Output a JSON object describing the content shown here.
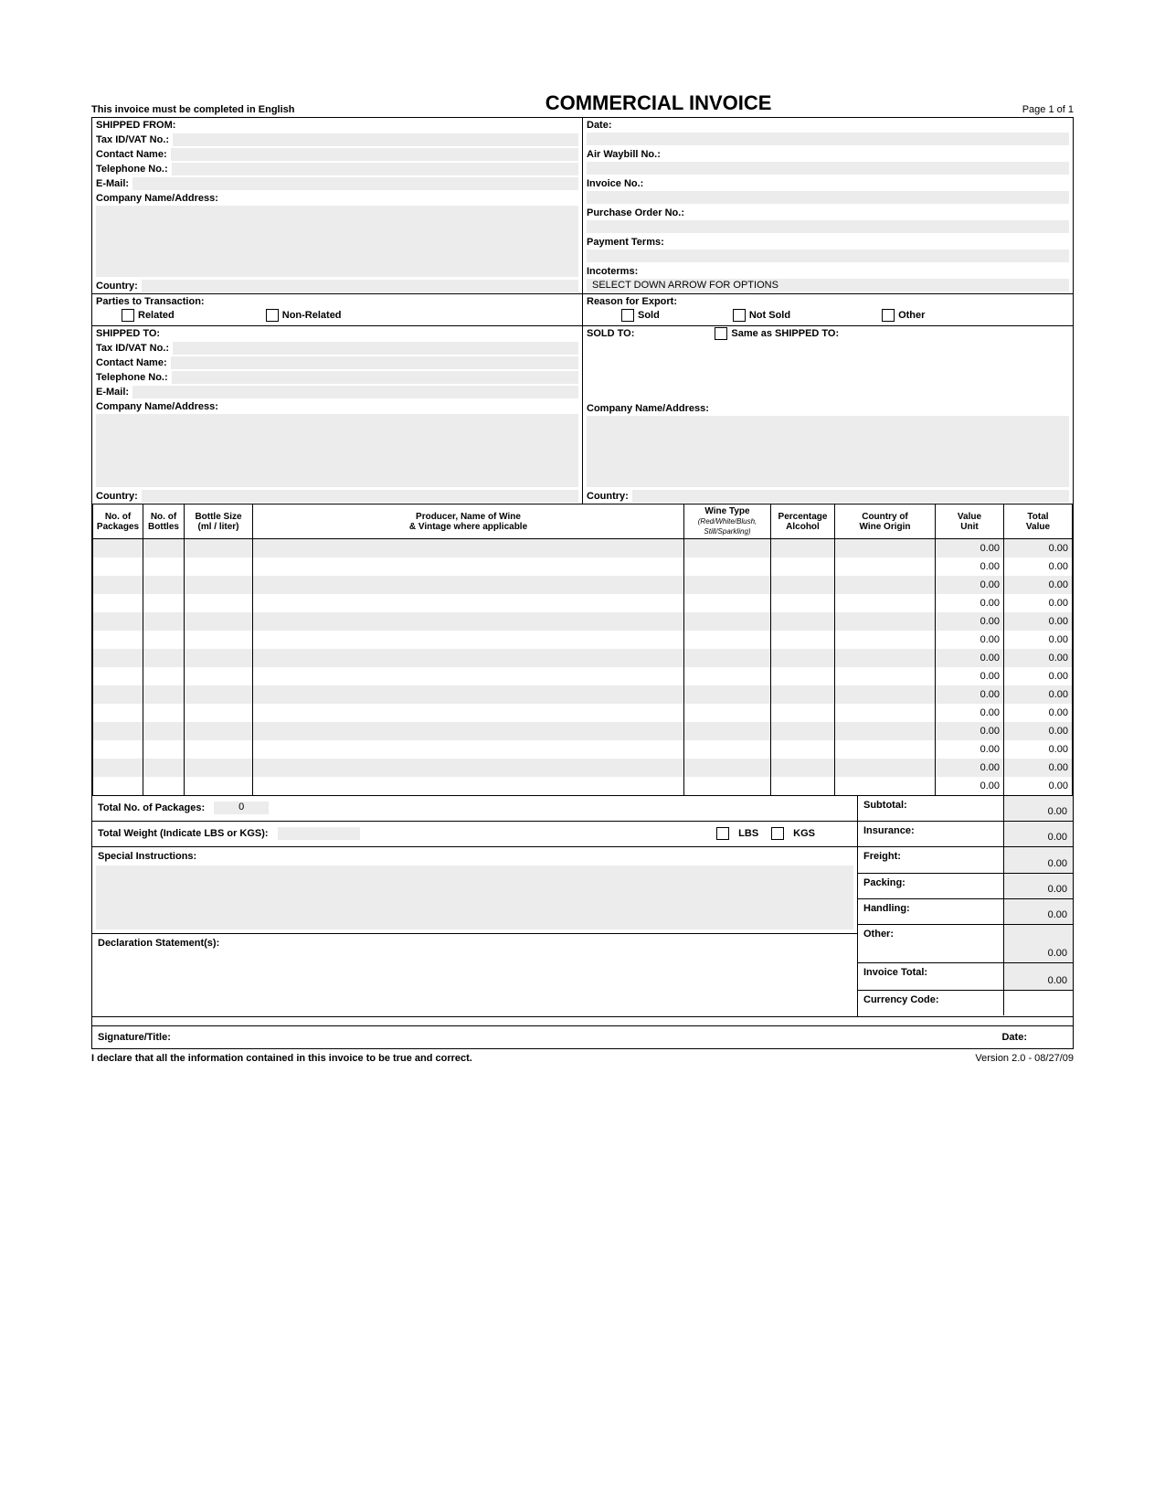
{
  "header": {
    "note": "This invoice must be completed in English",
    "title": "COMMERCIAL INVOICE",
    "page": "Page 1 of 1"
  },
  "shipped_from": {
    "heading": "SHIPPED FROM:",
    "tax_id_label": "Tax ID/VAT No.:",
    "contact_label": "Contact Name:",
    "tel_label": "Telephone No.:",
    "email_label": "E-Mail:",
    "company_label": "Company Name/Address:",
    "country_label": "Country:"
  },
  "right_top": {
    "date_label": "Date:",
    "awb_label": "Air Waybill No.:",
    "invno_label": "Invoice No.:",
    "po_label": "Purchase Order No.:",
    "terms_label": "Payment Terms:",
    "incoterms_label": "Incoterms:",
    "incoterms_value": "SELECT DOWN ARROW FOR OPTIONS"
  },
  "parties": {
    "label": "Parties to Transaction:",
    "related": "Related",
    "nonrelated": "Non-Related"
  },
  "reason": {
    "label": "Reason for Export:",
    "sold": "Sold",
    "notsold": "Not Sold",
    "other": "Other"
  },
  "shipped_to": {
    "heading": "SHIPPED TO:",
    "tax_id_label": "Tax ID/VAT No.:",
    "contact_label": "Contact Name:",
    "tel_label": "Telephone No.:",
    "email_label": "E-Mail:",
    "company_label": "Company Name/Address:",
    "country_label": "Country:"
  },
  "sold_to": {
    "heading": "SOLD TO:",
    "same_label": "Same as SHIPPED TO:",
    "company_label": "Company Name/Address:",
    "country_label": "Country:"
  },
  "columns": {
    "c1": "No. of\nPackages",
    "c2": "No. of\nBottles",
    "c3": "Bottle Size\n(ml / liter)",
    "c4": "Producer, Name of Wine\n& Vintage where applicable",
    "c5a": "Wine Type",
    "c5b": "(Red/White/Blush,\nStill/Sparkling)",
    "c6": "Percentage\nAlcohol",
    "c7": "Country of\nWine Origin",
    "c8": "Value\nUnit",
    "c9": "Total\nValue"
  },
  "item_rows": 14,
  "zero": "0.00",
  "totals": {
    "pkg_label": "Total No. of Packages:",
    "pkg_value": "0",
    "weight_label": "Total Weight (Indicate LBS or KGS):",
    "lbs": "LBS",
    "kgs": "KGS",
    "special_label": "Special Instructions:",
    "decl_label": "Declaration Statement(s):",
    "subtotal": "Subtotal:",
    "insurance": "Insurance:",
    "freight": "Freight:",
    "packing": "Packing:",
    "handling": "Handling:",
    "other": "Other:",
    "invoice_total": "Invoice Total:",
    "currency": "Currency Code:"
  },
  "signature": {
    "sig_label": "Signature/Title:",
    "date_label": "Date:"
  },
  "footer": {
    "declare": "I declare that all the information contained in this invoice to be true and correct.",
    "version": "Version 2.0 - 08/27/09"
  },
  "style": {
    "fill_color": "#ececec",
    "border_color": "#000000",
    "font": "Arial"
  }
}
